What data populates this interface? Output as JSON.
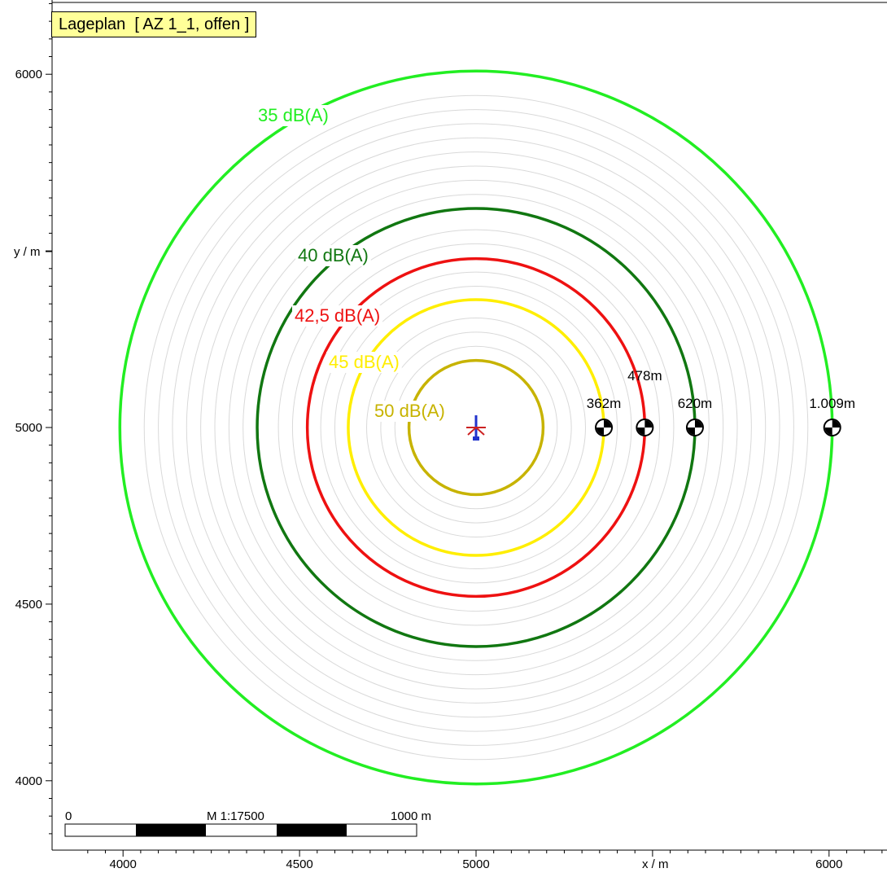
{
  "title": "Lageplan  [ AZ 1_1, offen ]",
  "axes": {
    "x_label": "x / m",
    "y_label": "y / m",
    "x_ticks": [
      "4000",
      "4500",
      "5000",
      "6000"
    ],
    "y_ticks": [
      "6000",
      "5000",
      "4500",
      "4000"
    ],
    "xlim": [
      3850,
      6160
    ],
    "ylim": [
      3840,
      6210
    ]
  },
  "source": {
    "x": 5000,
    "y": 5000,
    "icon": "wind-turbine-icon"
  },
  "contours": [
    {
      "label": "35 dB(A)",
      "radius_m": 1009,
      "color": "#22ee22"
    },
    {
      "label": "40 dB(A)",
      "radius_m": 620,
      "color": "#117711"
    },
    {
      "label": "42,5 dB(A)",
      "radius_m": 478,
      "color": "#ee1111"
    },
    {
      "label": "45 dB(A)",
      "radius_m": 362,
      "color": "#ffee00"
    },
    {
      "label": "50 dB(A)",
      "radius_m": 190,
      "color": "#c7b300"
    }
  ],
  "background_rings": {
    "color": "#d9d9d9",
    "radii_m": [
      230,
      270,
      310,
      400,
      440,
      520,
      560,
      660,
      700,
      740,
      780,
      820,
      860,
      900,
      940
    ]
  },
  "receivers": [
    {
      "label": "362m",
      "x": 5362,
      "y": 5000
    },
    {
      "label": "478m",
      "x": 5478,
      "y": 5000
    },
    {
      "label": "620m",
      "x": 5620,
      "y": 5000
    },
    {
      "label": "1.009m",
      "x": 6009,
      "y": 5000
    }
  ],
  "scale_bar": {
    "start_label": "0",
    "scale_label": "M 1:17500",
    "end_label": "1000 m"
  }
}
